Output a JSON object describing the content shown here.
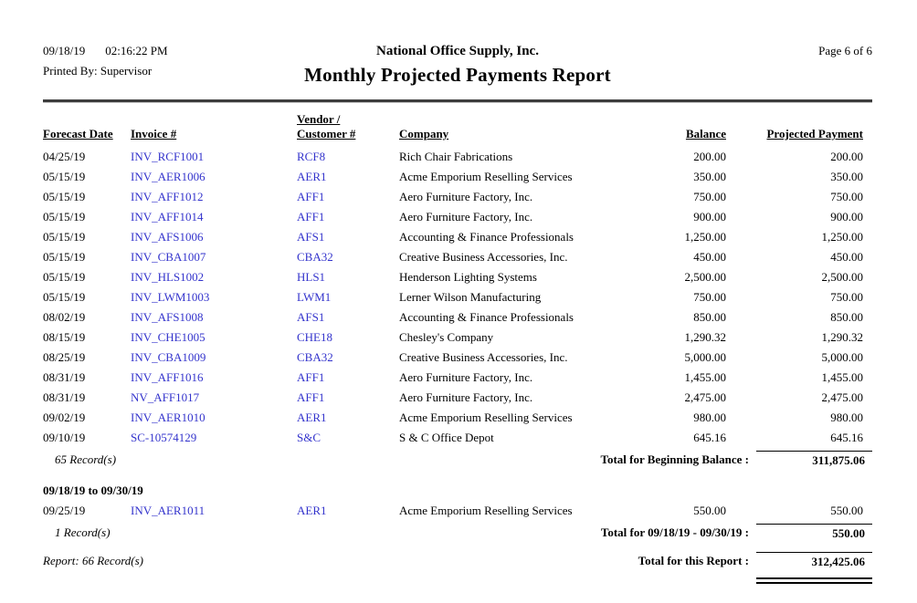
{
  "colors": {
    "link_blue": "#3333cc",
    "text": "#000000"
  },
  "header": {
    "date": "09/18/19",
    "time": "02:16:22 PM",
    "printed_by": "Printed By: Supervisor",
    "company_name": "National Office Supply, Inc.",
    "report_title": "Monthly Projected Payments Report",
    "page_label": "Page 6 of 6"
  },
  "table": {
    "columns": {
      "forecast_date": "Forecast Date",
      "invoice": "Invoice #",
      "vendor_line1": "Vendor /",
      "vendor_line2": "Customer #",
      "company": "Company",
      "balance": "Balance",
      "projected_payment": "Projected Payment"
    },
    "rows": [
      {
        "date": "04/25/19",
        "invoice": "INV_RCF1001",
        "customer": "RCF8",
        "company": "Rich Chair Fabrications",
        "balance": "200.00",
        "payment": "200.00"
      },
      {
        "date": "05/15/19",
        "invoice": "INV_AER1006",
        "customer": "AER1",
        "company": "Acme Emporium Reselling Services",
        "balance": "350.00",
        "payment": "350.00"
      },
      {
        "date": "05/15/19",
        "invoice": "INV_AFF1012",
        "customer": "AFF1",
        "company": "Aero Furniture Factory, Inc.",
        "balance": "750.00",
        "payment": "750.00"
      },
      {
        "date": "05/15/19",
        "invoice": "INV_AFF1014",
        "customer": "AFF1",
        "company": "Aero Furniture Factory, Inc.",
        "balance": "900.00",
        "payment": "900.00"
      },
      {
        "date": "05/15/19",
        "invoice": "INV_AFS1006",
        "customer": "AFS1",
        "company": "Accounting & Finance Professionals",
        "balance": "1,250.00",
        "payment": "1,250.00"
      },
      {
        "date": "05/15/19",
        "invoice": "INV_CBA1007",
        "customer": "CBA32",
        "company": "Creative Business Accessories, Inc.",
        "balance": "450.00",
        "payment": "450.00"
      },
      {
        "date": "05/15/19",
        "invoice": "INV_HLS1002",
        "customer": "HLS1",
        "company": "Henderson Lighting Systems",
        "balance": "2,500.00",
        "payment": "2,500.00"
      },
      {
        "date": "05/15/19",
        "invoice": "INV_LWM1003",
        "customer": "LWM1",
        "company": "Lerner Wilson Manufacturing",
        "balance": "750.00",
        "payment": "750.00"
      },
      {
        "date": "08/02/19",
        "invoice": "INV_AFS1008",
        "customer": "AFS1",
        "company": "Accounting & Finance Professionals",
        "balance": "850.00",
        "payment": "850.00"
      },
      {
        "date": "08/15/19",
        "invoice": "INV_CHE1005",
        "customer": "CHE18",
        "company": "Chesley's Company",
        "balance": "1,290.32",
        "payment": "1,290.32"
      },
      {
        "date": "08/25/19",
        "invoice": "INV_CBA1009",
        "customer": "CBA32",
        "company": "Creative Business Accessories, Inc.",
        "balance": "5,000.00",
        "payment": "5,000.00"
      },
      {
        "date": "08/31/19",
        "invoice": "INV_AFF1016",
        "customer": "AFF1",
        "company": "Aero Furniture Factory, Inc.",
        "balance": "1,455.00",
        "payment": "1,455.00"
      },
      {
        "date": "08/31/19",
        "invoice": "NV_AFF1017",
        "customer": "AFF1",
        "company": "Aero Furniture Factory, Inc.",
        "balance": "2,475.00",
        "payment": "2,475.00"
      },
      {
        "date": "09/02/19",
        "invoice": "INV_AER1010",
        "customer": "AER1",
        "company": "Acme Emporium Reselling Services",
        "balance": "980.00",
        "payment": "980.00"
      },
      {
        "date": "09/10/19",
        "invoice": "SC-10574129",
        "customer": "S&C",
        "company": "S & C Office Depot",
        "balance": "645.16",
        "payment": "645.16"
      }
    ]
  },
  "section1_totals": {
    "record_count": "65 Record(s)",
    "total_label": "Total for Beginning Balance :",
    "total_value": "311,875.06"
  },
  "section2": {
    "heading": "09/18/19 to 09/30/19",
    "rows": [
      {
        "date": "09/25/19",
        "invoice": "INV_AER1011",
        "customer": "AER1",
        "company": "Acme Emporium Reselling Services",
        "balance": "550.00",
        "payment": "550.00"
      }
    ],
    "record_count": "1 Record(s)",
    "total_label": "Total for 09/18/19 - 09/30/19 :",
    "total_value": "550.00"
  },
  "report_footer": {
    "record_count": "Report: 66 Record(s)",
    "total_label": "Total for this Report :",
    "total_value": "312,425.06"
  }
}
